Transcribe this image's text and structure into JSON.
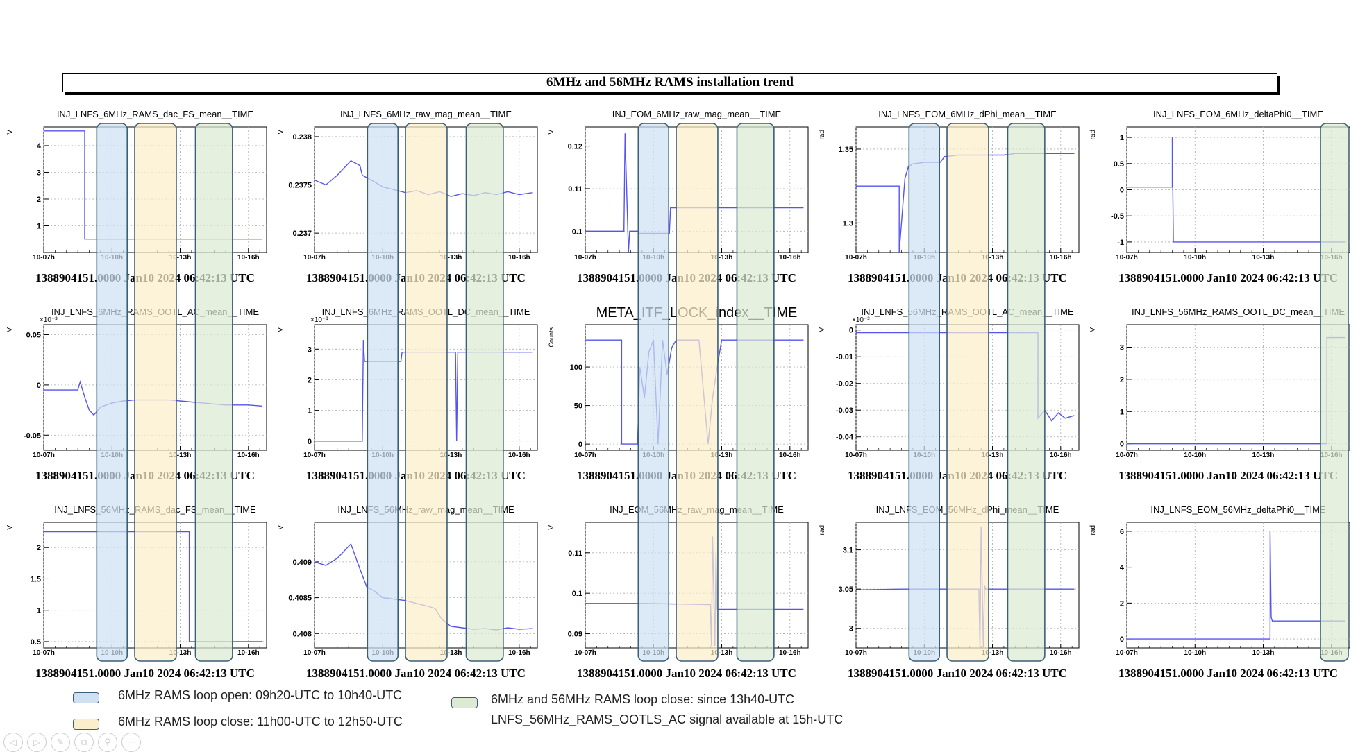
{
  "title": "6MHz and 56MHz RAMS installation trend",
  "stamp": "1388904151.0000 Jan10 2024 06:42:13 UTC",
  "colors": {
    "line": "#5555ee",
    "blue_band": "#cfe0f3",
    "yellow_band": "#fbefcb",
    "green_band": "#dcead3",
    "band_border": "#3a5f7a"
  },
  "legend": [
    {
      "text": "6MHz RAMS loop open:  09h20-UTC to 10h40-UTC",
      "color": "#cfe0f3"
    },
    {
      "text": "6MHz RAMS loop close:  11h00-UTC to 12h50-UTC",
      "color": "#fbefcb"
    },
    {
      "text": "6MHz and 56MHz RAMS loop close: since 13h40-UTC",
      "color": "#dcead3"
    },
    {
      "text": "LNFS_56MHz_RAMS_OOTLS_AC signal available at 15h-UTC",
      "color": ""
    }
  ],
  "nav_icons": [
    "left-arrow-icon",
    "right-arrow-icon",
    "pen-icon",
    "copy-icon",
    "zoom-icon",
    "more-icon"
  ],
  "chart_data": [
    {
      "type": "line",
      "title": "INJ_LNFS_6MHz_RAMS_dac_FS_mean__TIME",
      "ylabel": "V",
      "yscale": "",
      "x_ticks": [
        "10-07h",
        "10-10h",
        "10-13h",
        "10-16h"
      ],
      "y_ticks": [
        "1",
        "2",
        "3",
        "4"
      ],
      "ylim": [
        0,
        4.7
      ],
      "series": [
        {
          "name": "",
          "x": [
            7,
            8.8,
            8.8,
            16.6
          ],
          "y": [
            4.55,
            4.55,
            0.5,
            0.5
          ]
        }
      ]
    },
    {
      "type": "line",
      "title": "INJ_LNFS_6MHz_raw_mag_mean__TIME",
      "ylabel": "V",
      "yscale": "",
      "x_ticks": [
        "10-07h",
        "10-10h",
        "10-13h",
        "10-16h"
      ],
      "y_ticks": [
        "0.237",
        "0.2375",
        "0.238"
      ],
      "ylim": [
        0.2368,
        0.2381
      ],
      "series": [
        {
          "name": "",
          "x": [
            7,
            7.5,
            8,
            8.6,
            9,
            9.1,
            9.5,
            10,
            10.5,
            11,
            11.5,
            12,
            12.5,
            13,
            13.5,
            14,
            14.5,
            15,
            15.5,
            16,
            16.6
          ],
          "y": [
            0.23755,
            0.2375,
            0.2376,
            0.23775,
            0.2377,
            0.2376,
            0.23755,
            0.23748,
            0.23745,
            0.23742,
            0.23744,
            0.2374,
            0.23743,
            0.23738,
            0.23741,
            0.23739,
            0.23742,
            0.2374,
            0.23743,
            0.2374,
            0.23742
          ]
        }
      ]
    },
    {
      "type": "line",
      "title": "INJ_EOM_6MHz_raw_mag_mean__TIME",
      "ylabel": "V",
      "yscale": "",
      "x_ticks": [
        "10-07h",
        "10-10h",
        "10-13h",
        "10-16h"
      ],
      "y_ticks": [
        "0.1",
        "0.11",
        "0.12"
      ],
      "ylim": [
        0.095,
        0.1245
      ],
      "series": [
        {
          "name": "",
          "x": [
            7,
            8.7,
            8.75,
            8.9,
            8.95,
            9.3,
            9.35,
            10.7,
            10.75,
            16.6
          ],
          "y": [
            0.1,
            0.1,
            0.123,
            0.095,
            0.1,
            0.1,
            0.0995,
            0.0995,
            0.1055,
            0.1055
          ]
        }
      ]
    },
    {
      "type": "line",
      "title": "INJ_LNFS_EOM_6MHz_dPhi_mean__TIME",
      "ylabel": "rad",
      "yscale": "",
      "x_ticks": [
        "10-07h",
        "10-10h",
        "10-13h",
        "10-16h"
      ],
      "y_ticks": [
        "1.3",
        "1.35"
      ],
      "ylim": [
        1.28,
        1.365
      ],
      "series": [
        {
          "name": "",
          "x": [
            7,
            8.9,
            8.9,
            9.15,
            9.3,
            9.5,
            10,
            10.7,
            10.9,
            11,
            11.5,
            12,
            12.5,
            13,
            13.5,
            14,
            14.5,
            15,
            16,
            16.6
          ],
          "y": [
            1.325,
            1.325,
            1.28,
            1.33,
            1.338,
            1.34,
            1.341,
            1.341,
            1.345,
            1.345,
            1.346,
            1.346,
            1.346,
            1.346,
            1.346,
            1.347,
            1.347,
            1.347,
            1.347,
            1.347
          ]
        }
      ]
    },
    {
      "type": "line",
      "title": "INJ_LNFS_EOM_6MHz_deltaPhi0__TIME",
      "ylabel": "rad",
      "yscale": "",
      "x_ticks": [
        "10-07h",
        "10-10h",
        "10-13h",
        "10-16h"
      ],
      "y_ticks": [
        "-1",
        "-0.5",
        "0",
        "0.5",
        "1"
      ],
      "ylim": [
        -1.2,
        1.2
      ],
      "series": [
        {
          "name": "",
          "x": [
            7,
            9.0,
            9.0,
            9.05,
            16.6
          ],
          "y": [
            0.05,
            0.05,
            1.0,
            -1.0,
            -1.0
          ]
        }
      ]
    },
    {
      "type": "line",
      "title": "INJ_LNFS_6MHz_RAMS_OOTL_AC_mean__TIME",
      "ylabel": "V",
      "yscale": "×10⁻³",
      "x_ticks": [
        "10-07h",
        "10-10h",
        "10-13h",
        "10-16h"
      ],
      "y_ticks": [
        "-0.05",
        "0",
        "0.05"
      ],
      "ylim": [
        -0.065,
        0.06
      ],
      "series": [
        {
          "name": "",
          "x": [
            7,
            8.5,
            8.6,
            8.8,
            9.0,
            9.2,
            9.5,
            10,
            10.5,
            11,
            11.5,
            12,
            12.5,
            13,
            13.5,
            14,
            14.5,
            15,
            16,
            16.6
          ],
          "y": [
            -0.005,
            -0.005,
            0.003,
            -0.012,
            -0.025,
            -0.03,
            -0.022,
            -0.018,
            -0.016,
            -0.015,
            -0.015,
            -0.015,
            -0.015,
            -0.016,
            -0.017,
            -0.018,
            -0.019,
            -0.02,
            -0.02,
            -0.021
          ]
        }
      ]
    },
    {
      "type": "line",
      "title": "INJ_LNFS_6MHz_RAMS_OOTL_DC_mean__TIME",
      "ylabel": "V",
      "yscale": "×10⁻³",
      "x_ticks": [
        "10-07h",
        "10-10h",
        "10-13h",
        "10-16h"
      ],
      "y_ticks": [
        "0",
        "1",
        "2",
        "3"
      ],
      "ylim": [
        -0.3,
        3.8
      ],
      "series": [
        {
          "name": "",
          "x": [
            7,
            9.1,
            9.15,
            9.2,
            10.8,
            10.85,
            13.2,
            13.25,
            13.3,
            16.6
          ],
          "y": [
            0,
            0,
            3.3,
            2.6,
            2.6,
            2.9,
            2.9,
            0,
            2.9,
            2.9
          ]
        }
      ]
    },
    {
      "type": "line",
      "title": "META_ITF_LOCK_index__TIME",
      "ylabel": "Counts",
      "yscale": "",
      "x_ticks": [
        "10-07h",
        "10-10h",
        "10-13h",
        "10-16h"
      ],
      "y_ticks": [
        "0",
        "50",
        "100"
      ],
      "ylim": [
        -8,
        155
      ],
      "series": [
        {
          "name": "",
          "x": [
            7,
            8.6,
            8.6,
            9.3,
            9.4,
            9.6,
            9.8,
            10,
            10.2,
            10.4,
            10.6,
            10.8,
            11,
            11.5,
            12,
            12.4,
            12.6,
            12.8,
            13,
            13.2,
            13.5,
            14,
            16.6
          ],
          "y": [
            135,
            135,
            0,
            0,
            100,
            60,
            120,
            135,
            0,
            135,
            90,
            125,
            135,
            135,
            135,
            0,
            60,
            100,
            135,
            135,
            135,
            135,
            135
          ]
        }
      ]
    },
    {
      "type": "line",
      "title": "INJ_LNFS_56MHz_RAMS_OOTL_AC_mean__TIME",
      "ylabel": "V",
      "yscale": "×10⁻³",
      "x_ticks": [
        "10-07h",
        "10-10h",
        "10-13h",
        "10-16h"
      ],
      "y_ticks": [
        "-0.04",
        "-0.03",
        "-0.02",
        "-0.01",
        "0"
      ],
      "ylim": [
        -0.045,
        0.002
      ],
      "series": [
        {
          "name": "",
          "x": [
            7,
            15,
            15,
            15.3,
            15.6,
            15.9,
            16.2,
            16.6
          ],
          "y": [
            -0.001,
            -0.001,
            -0.033,
            -0.03,
            -0.034,
            -0.031,
            -0.033,
            -0.032
          ]
        }
      ]
    },
    {
      "type": "line",
      "title": "INJ_LNFS_56MHz_RAMS_OOTL_DC_mean__TIME",
      "ylabel": "V",
      "yscale": "",
      "x_ticks": [
        "10-07h",
        "10-10h",
        "10-13h",
        "10-16h"
      ],
      "y_ticks": [
        "0",
        "1",
        "2",
        "3"
      ],
      "ylim": [
        -0.2,
        3.7
      ],
      "series": [
        {
          "name": "",
          "x": [
            7,
            15.8,
            15.8,
            16.6
          ],
          "y": [
            0,
            0,
            3.3,
            3.3
          ]
        }
      ]
    },
    {
      "type": "line",
      "title": "INJ_LNFS_56MHz_RAMS_dac_FS_mean__TIME",
      "ylabel": "V",
      "yscale": "",
      "x_ticks": [
        "10-07h",
        "10-10h",
        "10-13h",
        "10-16h"
      ],
      "y_ticks": [
        "0.5",
        "1",
        "1.5",
        "2"
      ],
      "ylim": [
        0.4,
        2.4
      ],
      "series": [
        {
          "name": "",
          "x": [
            7,
            13.4,
            13.4,
            16.6
          ],
          "y": [
            2.25,
            2.25,
            0.5,
            0.5
          ]
        }
      ]
    },
    {
      "type": "line",
      "title": "INJ_LNFS_56MHz_raw_mag_mean__TIME",
      "ylabel": "V",
      "yscale": "",
      "x_ticks": [
        "10-07h",
        "10-10h",
        "10-13h",
        "10-16h"
      ],
      "y_ticks": [
        "0.408",
        "0.4085",
        "0.409"
      ],
      "ylim": [
        0.4078,
        0.40955
      ],
      "series": [
        {
          "name": "",
          "x": [
            7,
            7.5,
            8,
            8.6,
            9,
            9.3,
            9.6,
            10,
            10.5,
            11,
            11.5,
            12,
            12.3,
            12.6,
            13,
            13.5,
            14,
            14.5,
            15,
            15.5,
            16,
            16.6
          ],
          "y": [
            0.409,
            0.40895,
            0.40905,
            0.40925,
            0.4089,
            0.40865,
            0.4086,
            0.4085,
            0.40848,
            0.40846,
            0.40842,
            0.40838,
            0.40835,
            0.4082,
            0.4081,
            0.40808,
            0.40806,
            0.40807,
            0.40805,
            0.40808,
            0.40806,
            0.40807
          ]
        }
      ]
    },
    {
      "type": "line",
      "title": "INJ_EOM_56MHz_raw_mag_mean__TIME",
      "ylabel": "V",
      "yscale": "",
      "x_ticks": [
        "10-07h",
        "10-10h",
        "10-13h",
        "10-16h"
      ],
      "y_ticks": [
        "0.09",
        "0.1",
        "0.11"
      ],
      "ylim": [
        0.0865,
        0.1175
      ],
      "series": [
        {
          "name": "",
          "x": [
            7,
            9.5,
            12.5,
            12.55,
            12.6,
            12.7,
            12.75,
            12.8,
            12.9,
            13,
            16.6
          ],
          "y": [
            0.0975,
            0.0975,
            0.0972,
            0.087,
            0.114,
            0.087,
            0.11,
            0.096,
            0.096,
            0.096,
            0.096
          ]
        }
      ]
    },
    {
      "type": "line",
      "title": "INJ_LNFS_EOM_56MHz_dPhi_mean__TIME",
      "ylabel": "rad",
      "yscale": "",
      "x_ticks": [
        "10-07h",
        "10-10h",
        "10-13h",
        "10-16h"
      ],
      "y_ticks": [
        "3",
        "3.05",
        "3.1"
      ],
      "ylim": [
        2.975,
        3.135
      ],
      "series": [
        {
          "name": "",
          "x": [
            7,
            9,
            11,
            12.4,
            12.45,
            12.5,
            12.6,
            12.65,
            12.7,
            16.6
          ],
          "y": [
            3.049,
            3.05,
            3.05,
            3.05,
            2.975,
            3.13,
            2.975,
            3.055,
            3.05,
            3.05
          ]
        }
      ]
    },
    {
      "type": "line",
      "title": "INJ_LNFS_EOM_56MHz_deltaPhi0__TIME",
      "ylabel": "rad",
      "yscale": "",
      "x_ticks": [
        "10-07h",
        "10-10h",
        "10-13h",
        "10-16h"
      ],
      "y_ticks": [
        "0",
        "2",
        "4",
        "6"
      ],
      "ylim": [
        -0.5,
        6.5
      ],
      "series": [
        {
          "name": "",
          "x": [
            7,
            13.3,
            13.3,
            13.35,
            13.4,
            16.6
          ],
          "y": [
            0,
            0,
            6,
            1.2,
            1.0,
            1.0
          ]
        }
      ]
    }
  ]
}
